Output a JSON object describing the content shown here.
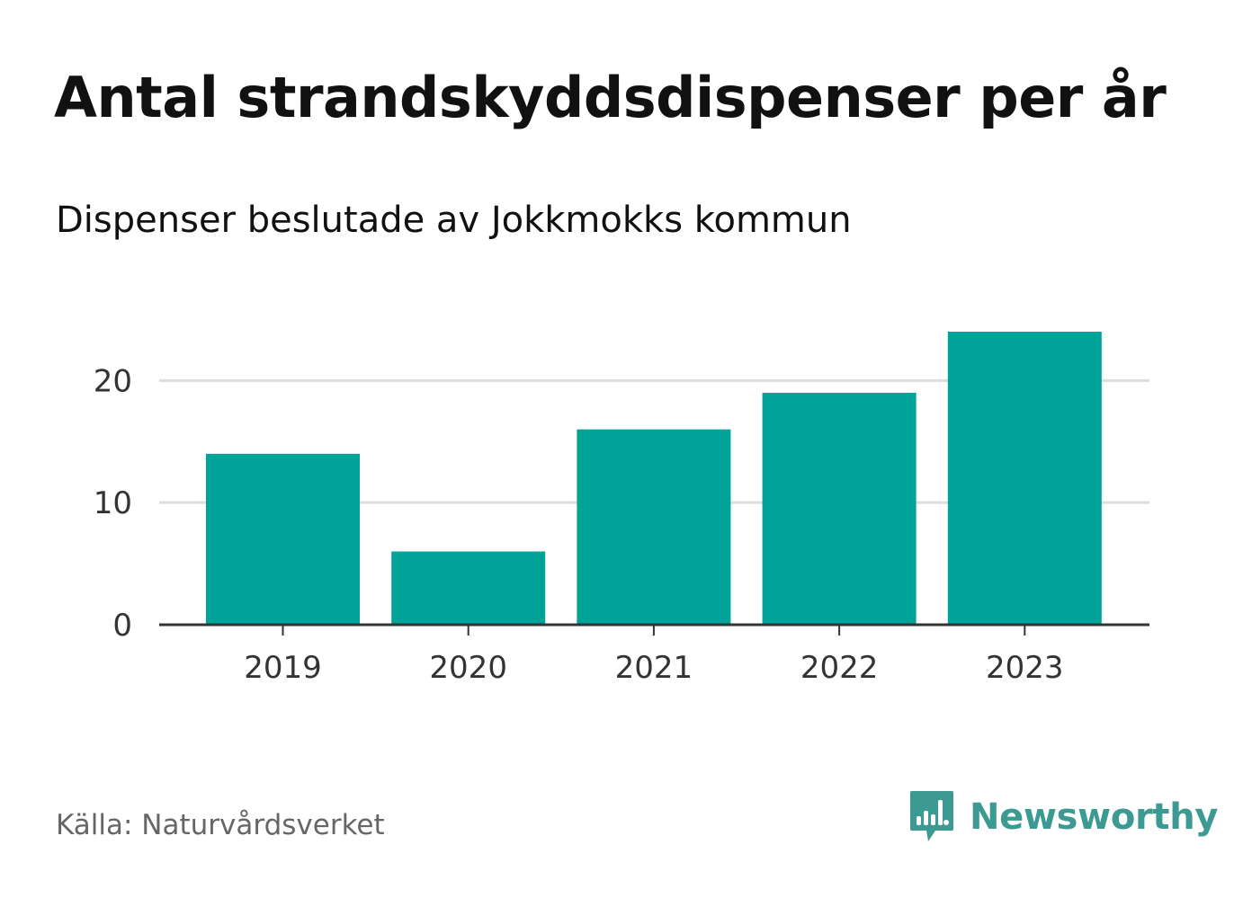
{
  "header": {
    "title": "Antal strandskyddsdispenser per år",
    "subtitle": "Dispenser beslutade av Jokkmokks kommun"
  },
  "footer": {
    "source": "Källa: Naturvårdsverket",
    "brand": "Newsworthy",
    "brand_icon": "newsworthy-logo-icon"
  },
  "colors": {
    "bar": "#00a398",
    "grid": "#dddddd",
    "axis": "#333333",
    "brand": "#3c9a92"
  },
  "chart_data": {
    "type": "bar",
    "title": "Antal strandskyddsdispenser per år",
    "subtitle": "Dispenser beslutade av Jokkmokks kommun",
    "categories": [
      "2019",
      "2020",
      "2021",
      "2022",
      "2023"
    ],
    "values": [
      14,
      6,
      16,
      19,
      24
    ],
    "xlabel": "",
    "ylabel": "",
    "ylim": [
      0,
      24
    ],
    "yticks": [
      0,
      10,
      20
    ],
    "grid": true,
    "legend": "none"
  }
}
